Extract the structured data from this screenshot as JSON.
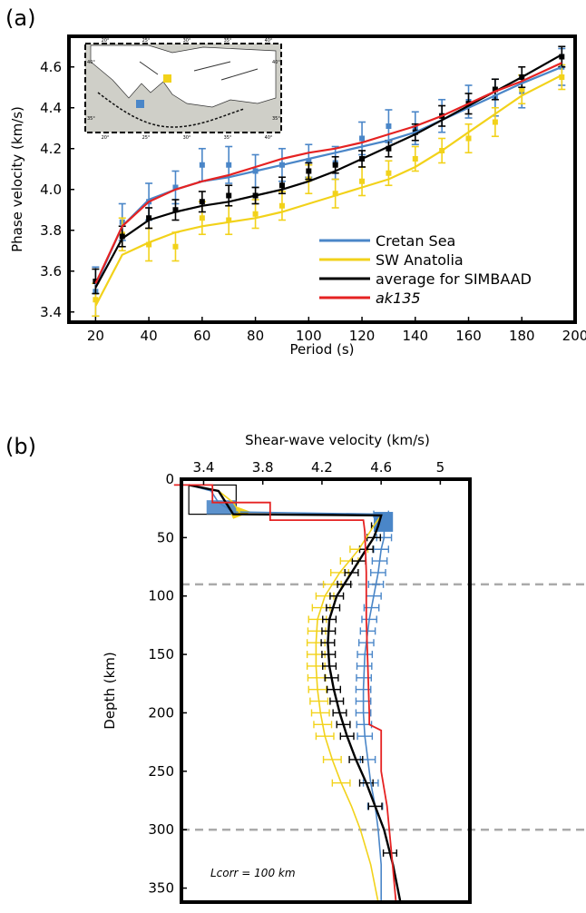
{
  "panel_a_label": "(a)",
  "panel_b_label": "(b)",
  "colors": {
    "cretan": "#4a86c8",
    "anatolia": "#f2d21a",
    "average": "#000000",
    "ak135": "#e52222",
    "gridline": "#aaaaaa"
  },
  "chart_data": [
    {
      "type": "line",
      "panel": "a",
      "xlabel": "Period (s)",
      "ylabel": "Phase velocity (km/s)",
      "xlim": [
        10,
        200
      ],
      "ylim": [
        3.35,
        4.75
      ],
      "x_ticks": [
        "20",
        "40",
        "60",
        "80",
        "100",
        "120",
        "140",
        "160",
        "180",
        "200"
      ],
      "y_ticks": [
        "3.4",
        "3.6",
        "3.8",
        "4.0",
        "4.2",
        "4.4",
        "4.6"
      ],
      "legend_position": "bottom-right",
      "inset_map": {
        "lon_ticks_top": [
          "20°",
          "25°",
          "30°",
          "35°",
          "40°"
        ],
        "lon_ticks_bottom": [
          "20°",
          "25°",
          "30°",
          "35°",
          "40°"
        ],
        "lat_ticks_left": [
          "40°",
          "35°"
        ],
        "lat_ticks_right": [
          "40°",
          "35°"
        ]
      },
      "series": [
        {
          "name": "Cretan Sea",
          "color_key": "cretan",
          "line": {
            "x": [
              20,
              30,
              40,
              50,
              60,
              70,
              80,
              90,
              100,
              110,
              120,
              130,
              140,
              150,
              160,
              170,
              180,
              195
            ],
            "y": [
              3.53,
              3.82,
              3.95,
              4.0,
              4.04,
              4.06,
              4.09,
              4.12,
              4.15,
              4.18,
              4.21,
              4.24,
              4.28,
              4.34,
              4.4,
              4.46,
              4.52,
              4.6
            ]
          },
          "points": {
            "x": [
              20,
              30,
              40,
              50,
              60,
              70,
              80,
              90,
              100,
              110,
              120,
              130,
              140,
              150,
              160,
              170,
              180,
              195
            ],
            "y": [
              3.5,
              3.84,
              3.94,
              4.01,
              4.12,
              4.12,
              4.09,
              4.12,
              4.14,
              4.13,
              4.25,
              4.31,
              4.3,
              4.36,
              4.43,
              4.45,
              4.48,
              4.6
            ],
            "err": [
              0.12,
              0.09,
              0.09,
              0.08,
              0.08,
              0.09,
              0.08,
              0.08,
              0.08,
              0.08,
              0.08,
              0.08,
              0.08,
              0.08,
              0.08,
              0.09,
              0.08,
              0.09
            ]
          }
        },
        {
          "name": "SW Anatolia",
          "color_key": "anatolia",
          "line": {
            "x": [
              20,
              30,
              40,
              50,
              60,
              70,
              80,
              90,
              100,
              110,
              120,
              130,
              140,
              150,
              160,
              170,
              180,
              195
            ],
            "y": [
              3.43,
              3.68,
              3.74,
              3.79,
              3.82,
              3.84,
              3.86,
              3.89,
              3.93,
              3.97,
              4.01,
              4.05,
              4.11,
              4.19,
              4.28,
              4.37,
              4.46,
              4.56
            ]
          },
          "points": {
            "x": [
              20,
              30,
              40,
              50,
              60,
              70,
              80,
              90,
              100,
              110,
              120,
              130,
              140,
              150,
              160,
              170,
              180,
              195
            ],
            "y": [
              3.46,
              3.78,
              3.73,
              3.72,
              3.86,
              3.85,
              3.88,
              3.92,
              4.05,
              3.98,
              4.04,
              4.08,
              4.15,
              4.19,
              4.25,
              4.33,
              4.49,
              4.55
            ],
            "err": [
              0.08,
              0.08,
              0.08,
              0.07,
              0.08,
              0.07,
              0.07,
              0.07,
              0.07,
              0.07,
              0.07,
              0.06,
              0.06,
              0.06,
              0.07,
              0.07,
              0.07,
              0.06
            ]
          }
        },
        {
          "name": "average for SIMBAAD",
          "color_key": "average",
          "line": {
            "x": [
              20,
              30,
              40,
              50,
              60,
              70,
              80,
              90,
              100,
              110,
              120,
              130,
              140,
              150,
              160,
              170,
              180,
              195
            ],
            "y": [
              3.52,
              3.76,
              3.85,
              3.89,
              3.92,
              3.94,
              3.97,
              4.0,
              4.04,
              4.09,
              4.15,
              4.21,
              4.27,
              4.34,
              4.41,
              4.48,
              4.55,
              4.66
            ]
          },
          "points": {
            "x": [
              20,
              30,
              40,
              50,
              60,
              70,
              80,
              90,
              100,
              110,
              120,
              130,
              140,
              150,
              160,
              170,
              180,
              195
            ],
            "y": [
              3.55,
              3.77,
              3.86,
              3.9,
              3.94,
              3.97,
              3.97,
              4.02,
              4.09,
              4.12,
              4.15,
              4.2,
              4.28,
              4.36,
              4.42,
              4.49,
              4.55,
              4.65
            ],
            "err": [
              0.06,
              0.05,
              0.05,
              0.05,
              0.05,
              0.05,
              0.04,
              0.04,
              0.04,
              0.04,
              0.04,
              0.04,
              0.04,
              0.05,
              0.05,
              0.05,
              0.05,
              0.05
            ]
          }
        },
        {
          "name": "ak135",
          "color_key": "ak135",
          "italic": true,
          "line": {
            "x": [
              20,
              30,
              40,
              50,
              60,
              70,
              80,
              90,
              100,
              110,
              120,
              130,
              140,
              150,
              160,
              170,
              180,
              195
            ],
            "y": [
              3.54,
              3.82,
              3.94,
              4.0,
              4.04,
              4.07,
              4.11,
              4.15,
              4.18,
              4.2,
              4.23,
              4.27,
              4.31,
              4.36,
              4.42,
              4.48,
              4.53,
              4.62
            ]
          }
        }
      ]
    },
    {
      "type": "line",
      "panel": "b",
      "xlabel": "Shear-wave velocity  (km/s)",
      "ylabel": "Depth (km)",
      "xlim": [
        3.25,
        5.2
      ],
      "ylim": [
        0,
        362
      ],
      "x_ticks": [
        {
          "label": "3.4",
          "value": 3.4
        },
        {
          "label": "3.8",
          "value": 3.8
        },
        {
          "label": "4.2",
          "value": 4.2
        },
        {
          "label": "4.6",
          "value": 4.6
        },
        {
          "label": "5",
          "value": 5.0
        }
      ],
      "y_ticks": [
        "0",
        "50",
        "100",
        "150",
        "200",
        "250",
        "300",
        "350"
      ],
      "reference_depths_dashed": [
        90,
        300
      ],
      "annotation": "Lcorr = 100 km",
      "series": [
        {
          "name": "Cretan Sea",
          "color_key": "cretan",
          "depth": [
            5,
            10,
            20,
            28,
            30,
            40,
            50,
            60,
            80,
            100,
            120,
            150,
            180,
            200,
            220,
            240,
            260,
            280,
            300,
            330,
            362
          ],
          "vs": [
            3.3,
            3.45,
            3.5,
            3.6,
            4.6,
            4.62,
            4.62,
            4.6,
            4.58,
            4.55,
            4.52,
            4.49,
            4.48,
            4.48,
            4.49,
            4.51,
            4.53,
            4.56,
            4.58,
            4.6,
            4.6
          ],
          "err_depths": [
            30,
            40,
            50,
            60,
            70,
            80,
            90,
            100,
            110,
            120,
            130,
            140,
            150,
            160,
            170,
            180,
            190,
            200,
            210,
            220,
            240,
            260,
            280
          ],
          "err": 0.05
        },
        {
          "name": "SW Anatolia",
          "color_key": "anatolia",
          "depth": [
            5,
            10,
            20,
            30,
            31,
            40,
            60,
            80,
            100,
            120,
            140,
            160,
            180,
            200,
            220,
            240,
            260,
            280,
            300,
            330,
            362
          ],
          "vs": [
            3.3,
            3.5,
            3.6,
            3.65,
            4.6,
            4.55,
            4.45,
            4.32,
            4.22,
            4.17,
            4.16,
            4.16,
            4.17,
            4.19,
            4.22,
            4.27,
            4.33,
            4.4,
            4.46,
            4.53,
            4.58
          ],
          "err_depths": [
            60,
            70,
            80,
            90,
            100,
            110,
            120,
            130,
            140,
            150,
            160,
            170,
            180,
            190,
            200,
            210,
            220,
            240,
            260
          ],
          "err": 0.06
        },
        {
          "name": "average for SIMBAAD",
          "color_key": "average",
          "depth": [
            5,
            10,
            20,
            30,
            31,
            40,
            50,
            60,
            80,
            100,
            120,
            140,
            160,
            180,
            200,
            220,
            240,
            260,
            280,
            300,
            330,
            362
          ],
          "vs": [
            3.3,
            3.5,
            3.55,
            3.6,
            4.6,
            4.58,
            4.55,
            4.5,
            4.4,
            4.3,
            4.25,
            4.24,
            4.25,
            4.28,
            4.32,
            4.37,
            4.43,
            4.5,
            4.56,
            4.62,
            4.68,
            4.73
          ],
          "err_depths": [
            40,
            50,
            60,
            70,
            80,
            90,
            100,
            110,
            120,
            130,
            140,
            150,
            160,
            170,
            180,
            190,
            200,
            210,
            220,
            240,
            260,
            280,
            320
          ],
          "err": 0.045
        },
        {
          "name": "ak135",
          "color_key": "ak135",
          "depth": [
            5,
            5,
            20,
            20,
            35,
            35,
            45,
            80,
            120,
            160,
            200,
            210,
            215,
            250,
            280,
            320,
            362
          ],
          "vs": [
            3.2,
            3.46,
            3.46,
            3.85,
            3.85,
            4.48,
            4.49,
            4.5,
            4.5,
            4.51,
            4.52,
            4.52,
            4.6,
            4.6,
            4.64,
            4.67,
            4.7
          ]
        }
      ]
    }
  ]
}
